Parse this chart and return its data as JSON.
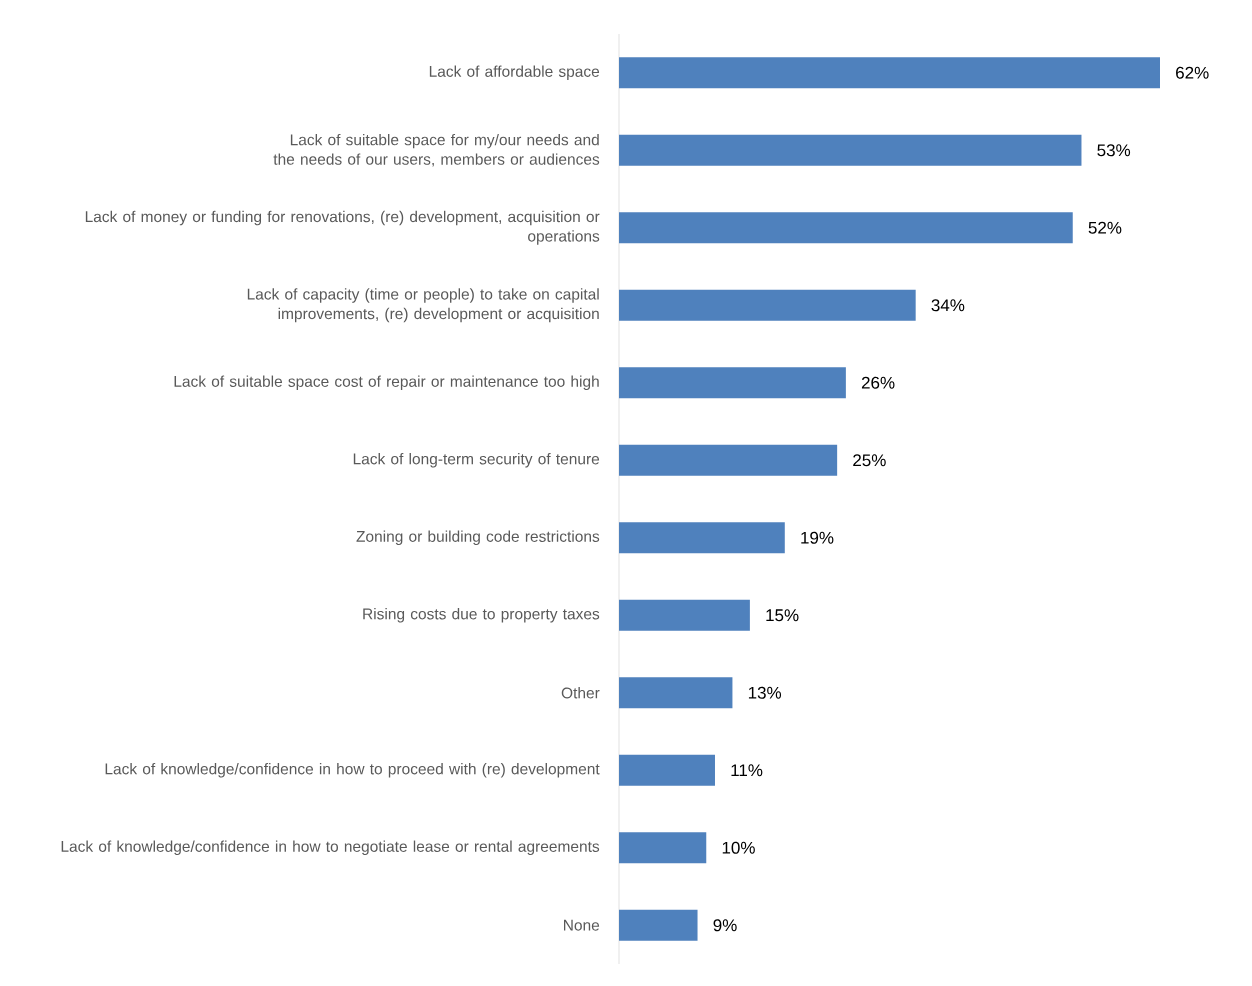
{
  "chart_data": {
    "type": "bar",
    "orientation": "horizontal",
    "categories": [
      "Lack of affordable space",
      "Lack of suitable space for my/our needs and the needs of our users, members or audiences",
      "Lack of money or funding for renovations, (re) development, acquisition or operations",
      "Lack of capacity (time or people) to take on capital improvements, (re) development or acquisition",
      "Lack of suitable space cost of repair or maintenance too high",
      "Lack of long-term security of tenure",
      "Zoning or building code restrictions",
      "Rising costs due to property taxes",
      "Other",
      "Lack of knowledge/confidence in how to proceed with (re) development",
      "Lack of knowledge/confidence in how to negotiate lease or rental agreements",
      "None"
    ],
    "values": [
      62,
      53,
      52,
      34,
      26,
      25,
      19,
      15,
      13,
      11,
      10,
      9
    ],
    "value_labels": [
      "62%",
      "53%",
      "52%",
      "34%",
      "26%",
      "25%",
      "19%",
      "15%",
      "13%",
      "11%",
      "10%",
      "9%"
    ],
    "color": "#4f81bd"
  }
}
